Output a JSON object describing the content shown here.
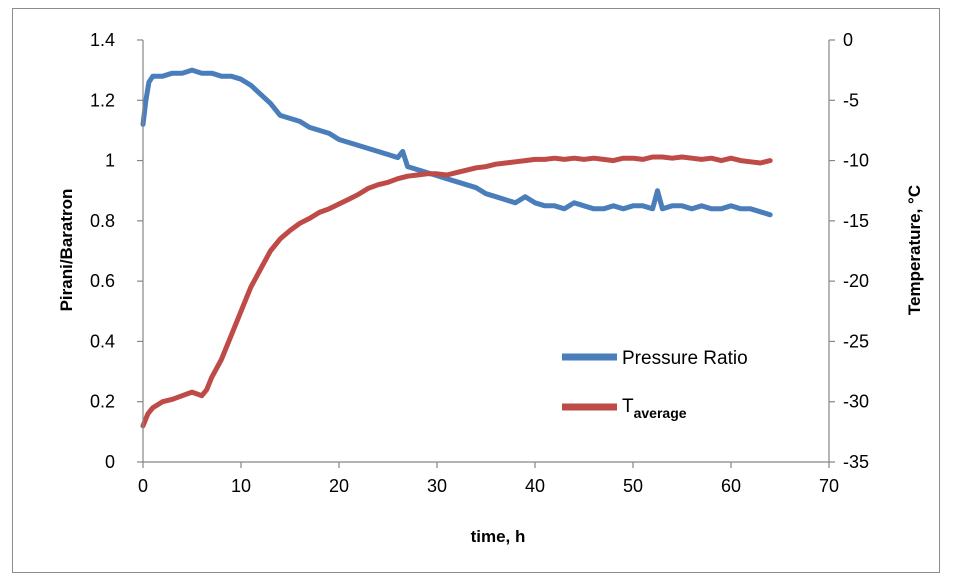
{
  "chart_data": {
    "type": "line",
    "xlabel": "time, h",
    "ylabel_left": "Pirani/Baratron",
    "ylabel_right": "Temperature, °C",
    "xlim": [
      0,
      70
    ],
    "ylim_left": [
      0,
      1.4
    ],
    "ylim_right": [
      -35,
      0
    ],
    "x_ticks": [
      "0",
      "10",
      "20",
      "30",
      "40",
      "50",
      "60",
      "70"
    ],
    "y_left_ticks": [
      "0",
      "0.2",
      "0.4",
      "0.6",
      "0.8",
      "1",
      "1.2",
      "1.4"
    ],
    "y_right_ticks": [
      "-35",
      "-30",
      "-25",
      "-20",
      "-15",
      "-10",
      "-5",
      "0"
    ],
    "grid": false,
    "legend_position": "right-center",
    "series": [
      {
        "name": "Pressure Ratio",
        "axis": "left",
        "color": "#4a7ebb",
        "x": [
          0,
          0.3,
          0.6,
          1,
          2,
          3,
          4,
          5,
          6,
          7,
          8,
          9,
          10,
          11,
          12,
          13,
          14,
          15,
          16,
          17,
          18,
          19,
          20,
          21,
          22,
          23,
          24,
          25,
          26,
          26.5,
          27,
          28,
          29,
          30,
          31,
          32,
          33,
          34,
          35,
          36,
          37,
          38,
          39,
          40,
          41,
          42,
          43,
          44,
          45,
          46,
          47,
          48,
          49,
          50,
          51,
          52,
          52.5,
          53,
          54,
          55,
          56,
          57,
          58,
          59,
          60,
          61,
          62,
          63,
          64
        ],
        "y": [
          1.12,
          1.2,
          1.26,
          1.28,
          1.28,
          1.29,
          1.29,
          1.3,
          1.29,
          1.29,
          1.28,
          1.28,
          1.27,
          1.25,
          1.22,
          1.19,
          1.15,
          1.14,
          1.13,
          1.11,
          1.1,
          1.09,
          1.07,
          1.06,
          1.05,
          1.04,
          1.03,
          1.02,
          1.01,
          1.03,
          0.98,
          0.97,
          0.96,
          0.95,
          0.94,
          0.93,
          0.92,
          0.91,
          0.89,
          0.88,
          0.87,
          0.86,
          0.88,
          0.86,
          0.85,
          0.85,
          0.84,
          0.86,
          0.85,
          0.84,
          0.84,
          0.85,
          0.84,
          0.85,
          0.85,
          0.84,
          0.9,
          0.84,
          0.85,
          0.85,
          0.84,
          0.85,
          0.84,
          0.84,
          0.85,
          0.84,
          0.84,
          0.83,
          0.82
        ]
      },
      {
        "name": "Taverage",
        "axis": "right",
        "color": "#be4b48",
        "x": [
          0,
          0.5,
          1,
          2,
          3,
          4,
          5,
          6,
          6.5,
          7,
          8,
          9,
          10,
          11,
          12,
          13,
          14,
          15,
          16,
          17,
          18,
          19,
          20,
          21,
          22,
          23,
          24,
          25,
          26,
          27,
          28,
          29,
          30,
          31,
          32,
          33,
          34,
          35,
          36,
          37,
          38,
          39,
          40,
          41,
          42,
          43,
          44,
          45,
          46,
          47,
          48,
          49,
          50,
          51,
          52,
          53,
          54,
          55,
          56,
          57,
          58,
          59,
          60,
          61,
          62,
          63,
          64
        ],
        "y": [
          -32,
          -31,
          -30.5,
          -30,
          -29.8,
          -29.5,
          -29.2,
          -29.5,
          -29,
          -28,
          -26.5,
          -24.5,
          -22.5,
          -20.5,
          -19,
          -17.5,
          -16.5,
          -15.8,
          -15.2,
          -14.8,
          -14.3,
          -14,
          -13.6,
          -13.2,
          -12.8,
          -12.3,
          -12,
          -11.8,
          -11.5,
          -11.3,
          -11.2,
          -11.1,
          -11.1,
          -11.2,
          -11,
          -10.8,
          -10.6,
          -10.5,
          -10.3,
          -10.2,
          -10.1,
          -10,
          -9.9,
          -9.9,
          -9.8,
          -9.9,
          -9.8,
          -9.9,
          -9.8,
          -9.9,
          -10,
          -9.8,
          -9.8,
          -9.9,
          -9.7,
          -9.7,
          -9.8,
          -9.7,
          -9.8,
          -9.9,
          -9.8,
          -10,
          -9.8,
          -10,
          -10.1,
          -10.2,
          -10
        ]
      }
    ],
    "legend": {
      "pressure_label": "Pressure Ratio",
      "temp_main": "T",
      "temp_sub": "average"
    }
  }
}
